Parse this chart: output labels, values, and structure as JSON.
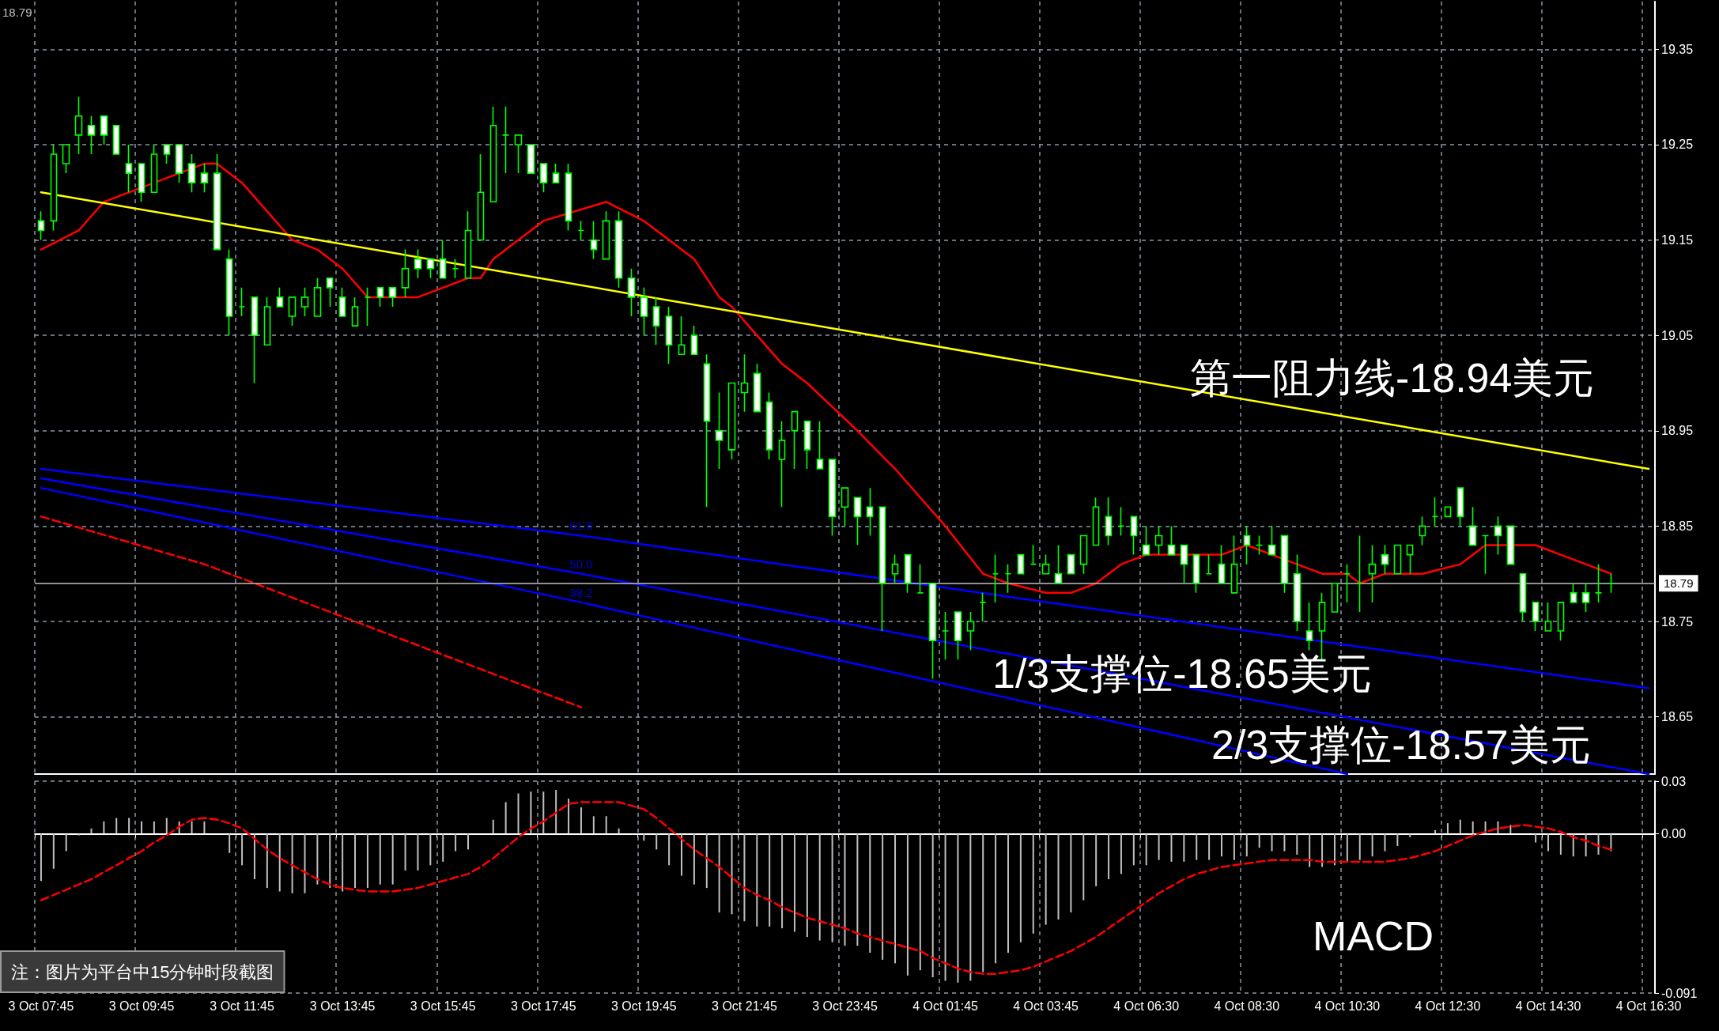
{
  "chart_data": [
    {
      "type": "candlestick",
      "categories": [
        null,
        null,
        null,
        null,
        null,
        null,
        null,
        null,
        null,
        null,
        null,
        null,
        null,
        null,
        null,
        null,
        null,
        null,
        null,
        null,
        null,
        null,
        null,
        null,
        null,
        null,
        null,
        null,
        null,
        null,
        null,
        null,
        null,
        null,
        null,
        null,
        null,
        null,
        null,
        null,
        null,
        null,
        null,
        null,
        null,
        null,
        null,
        null,
        null,
        null,
        null,
        null,
        null,
        null,
        null,
        null,
        null,
        null,
        null,
        null,
        null,
        null,
        null,
        null,
        null,
        null,
        null,
        null,
        null,
        null,
        null,
        null,
        null,
        null,
        null,
        null,
        null,
        null,
        null,
        null,
        null,
        null,
        null,
        null,
        null,
        null,
        null,
        null,
        null,
        null,
        null,
        null,
        null,
        null,
        null,
        null,
        null,
        null,
        null,
        null,
        null,
        null,
        null,
        null,
        null,
        null,
        null,
        null,
        null,
        null,
        null,
        null,
        null,
        null,
        null,
        null,
        null,
        null,
        null,
        null,
        null,
        null,
        null,
        null,
        null,
        null,
        null,
        null,
        null
      ],
      "series": [
        {
          "color": "#00ff00",
          "ohlc": [
            [
              19.17,
              19.18,
              19.15,
              19.16
            ],
            [
              19.17,
              19.25,
              19.16,
              19.24
            ],
            [
              19.23,
              19.25,
              19.22,
              19.25
            ],
            [
              19.26,
              19.3,
              19.24,
              19.28
            ],
            [
              19.27,
              19.28,
              19.24,
              19.26
            ],
            [
              19.28,
              19.28,
              19.25,
              19.26
            ],
            [
              19.27,
              19.27,
              19.24,
              19.24
            ],
            [
              19.23,
              19.25,
              19.2,
              19.22
            ],
            [
              19.23,
              19.23,
              19.19,
              19.2
            ],
            [
              19.2,
              19.25,
              19.2,
              19.24
            ],
            [
              19.25,
              19.25,
              19.23,
              19.24
            ],
            [
              19.25,
              19.25,
              19.21,
              19.22
            ],
            [
              19.23,
              19.24,
              19.2,
              19.21
            ],
            [
              19.22,
              19.23,
              19.2,
              19.21
            ],
            [
              19.22,
              19.24,
              19.14,
              19.14
            ],
            [
              19.13,
              19.14,
              19.05,
              19.07
            ],
            [
              19.08,
              19.1,
              19.07,
              19.08
            ],
            [
              19.09,
              19.09,
              19.0,
              19.05
            ],
            [
              19.04,
              19.09,
              19.04,
              19.08
            ],
            [
              19.09,
              19.1,
              19.08,
              19.08
            ],
            [
              19.07,
              19.09,
              19.06,
              19.09
            ],
            [
              19.08,
              19.1,
              19.07,
              19.09
            ],
            [
              19.07,
              19.11,
              19.07,
              19.1
            ],
            [
              19.11,
              19.11,
              19.08,
              19.1
            ],
            [
              19.09,
              19.1,
              19.07,
              19.07
            ],
            [
              19.06,
              19.09,
              19.06,
              19.08
            ],
            [
              19.09,
              19.1,
              19.06,
              19.09
            ],
            [
              19.1,
              19.1,
              19.08,
              19.09
            ],
            [
              19.1,
              19.1,
              19.08,
              19.09
            ],
            [
              19.1,
              19.14,
              19.09,
              19.12
            ],
            [
              19.13,
              19.14,
              19.11,
              19.12
            ],
            [
              19.13,
              19.13,
              19.11,
              19.12
            ],
            [
              19.13,
              19.15,
              19.11,
              19.11
            ],
            [
              19.12,
              19.13,
              19.11,
              19.12
            ],
            [
              19.11,
              19.18,
              19.11,
              19.16
            ],
            [
              19.15,
              19.24,
              19.15,
              19.2
            ],
            [
              19.19,
              19.29,
              19.19,
              19.27
            ],
            [
              19.26,
              19.29,
              19.22,
              19.26
            ],
            [
              19.25,
              19.26,
              19.22,
              19.26
            ],
            [
              19.25,
              19.25,
              19.22,
              19.22
            ],
            [
              19.23,
              19.23,
              19.2,
              19.21
            ],
            [
              19.22,
              19.23,
              19.21,
              19.21
            ],
            [
              19.22,
              19.23,
              19.16,
              19.17
            ],
            [
              19.16,
              19.17,
              19.15,
              19.16
            ],
            [
              19.15,
              19.17,
              19.13,
              19.14
            ],
            [
              19.13,
              19.18,
              19.13,
              19.17
            ],
            [
              19.17,
              19.18,
              19.1,
              19.11
            ],
            [
              19.11,
              19.12,
              19.07,
              19.09
            ],
            [
              19.09,
              19.1,
              19.05,
              19.07
            ],
            [
              19.08,
              19.09,
              19.04,
              19.06
            ],
            [
              19.07,
              19.08,
              19.02,
              19.04
            ],
            [
              19.03,
              19.07,
              19.03,
              19.04
            ],
            [
              19.05,
              19.06,
              19.03,
              19.03
            ],
            [
              19.02,
              19.03,
              18.87,
              18.96
            ],
            [
              18.95,
              18.99,
              18.91,
              18.94
            ],
            [
              18.93,
              19.0,
              18.92,
              19.0
            ],
            [
              18.99,
              19.03,
              18.97,
              19.0
            ],
            [
              19.01,
              19.02,
              18.97,
              18.97
            ],
            [
              18.98,
              18.99,
              18.92,
              18.93
            ],
            [
              18.92,
              18.96,
              18.87,
              18.94
            ],
            [
              18.95,
              18.97,
              18.91,
              18.97
            ],
            [
              18.96,
              18.96,
              18.91,
              18.93
            ],
            [
              18.92,
              18.96,
              18.91,
              18.91
            ],
            [
              18.92,
              18.92,
              18.84,
              18.86
            ],
            [
              18.87,
              18.89,
              18.85,
              18.89
            ],
            [
              18.88,
              18.88,
              18.83,
              18.86
            ],
            [
              18.87,
              18.89,
              18.84,
              18.86
            ],
            [
              18.87,
              18.87,
              18.74,
              18.79
            ],
            [
              18.8,
              18.82,
              18.79,
              18.81
            ],
            [
              18.82,
              18.82,
              18.78,
              18.79
            ],
            [
              18.78,
              18.81,
              18.78,
              18.78
            ],
            [
              18.79,
              18.79,
              18.69,
              18.73
            ],
            [
              18.74,
              18.76,
              18.71,
              18.74
            ],
            [
              18.76,
              18.76,
              18.71,
              18.73
            ],
            [
              18.74,
              18.76,
              18.72,
              18.75
            ],
            [
              18.77,
              18.78,
              18.75,
              18.77
            ],
            [
              18.8,
              18.82,
              18.77,
              18.8
            ],
            [
              18.8,
              18.81,
              18.78,
              18.8
            ],
            [
              18.82,
              18.82,
              18.8,
              18.8
            ],
            [
              18.81,
              18.83,
              18.81,
              18.81
            ],
            [
              18.8,
              18.82,
              18.8,
              18.81
            ],
            [
              18.8,
              18.83,
              18.79,
              18.79
            ],
            [
              18.82,
              18.82,
              18.8,
              18.8
            ],
            [
              18.81,
              18.84,
              18.8,
              18.84
            ],
            [
              18.83,
              18.88,
              18.83,
              18.87
            ],
            [
              18.86,
              18.88,
              18.83,
              18.84
            ],
            [
              18.85,
              18.87,
              18.84,
              18.85
            ],
            [
              18.86,
              18.86,
              18.82,
              18.84
            ],
            [
              18.83,
              18.85,
              18.82,
              18.82
            ],
            [
              18.83,
              18.85,
              18.82,
              18.84
            ],
            [
              18.83,
              18.85,
              18.82,
              18.82
            ],
            [
              18.83,
              18.83,
              18.79,
              18.81
            ],
            [
              18.82,
              18.82,
              18.78,
              18.79
            ],
            [
              18.8,
              18.82,
              18.8,
              18.8
            ],
            [
              18.81,
              18.83,
              18.79,
              18.79
            ],
            [
              18.78,
              18.84,
              18.78,
              18.81
            ],
            [
              18.84,
              18.85,
              18.81,
              18.83
            ],
            [
              18.83,
              18.84,
              18.82,
              18.83
            ],
            [
              18.83,
              18.85,
              18.82,
              18.82
            ],
            [
              18.84,
              18.84,
              18.78,
              18.79
            ],
            [
              18.8,
              18.82,
              18.74,
              18.75
            ],
            [
              18.74,
              18.77,
              18.72,
              18.73
            ],
            [
              18.74,
              18.78,
              18.71,
              18.77
            ],
            [
              18.76,
              18.79,
              18.76,
              18.79
            ],
            [
              18.8,
              18.81,
              18.77,
              18.8
            ],
            [
              18.79,
              18.84,
              18.76,
              18.79
            ],
            [
              18.8,
              18.83,
              18.77,
              18.81
            ],
            [
              18.82,
              18.83,
              18.8,
              18.81
            ],
            [
              18.8,
              18.83,
              18.8,
              18.83
            ],
            [
              18.82,
              18.83,
              18.8,
              18.83
            ],
            [
              18.84,
              18.86,
              18.83,
              18.85
            ],
            [
              18.86,
              18.88,
              18.85,
              18.86
            ],
            [
              18.86,
              18.87,
              18.86,
              18.87
            ],
            [
              18.89,
              18.89,
              18.85,
              18.86
            ],
            [
              18.85,
              18.87,
              18.83,
              18.83
            ],
            [
              18.84,
              18.84,
              18.8,
              18.84
            ],
            [
              18.85,
              18.86,
              18.82,
              18.84
            ],
            [
              18.85,
              18.85,
              18.81,
              18.81
            ],
            [
              18.8,
              18.8,
              18.75,
              18.76
            ],
            [
              18.77,
              18.77,
              18.74,
              18.75
            ],
            [
              18.74,
              18.77,
              18.74,
              18.75
            ],
            [
              18.74,
              18.77,
              18.73,
              18.77
            ],
            [
              18.78,
              18.79,
              18.77,
              18.77
            ],
            [
              18.78,
              18.79,
              18.76,
              18.77
            ],
            [
              18.78,
              18.81,
              18.77,
              18.78
            ],
            [
              18.79,
              18.8,
              18.78,
              18.79
            ],
            null,
            null,
            null
          ]
        },
        {
          "type": "line",
          "color": "#ff0000",
          "values": [
            19.14,
            null,
            null,
            19.16,
            null,
            19.19,
            null,
            null,
            null,
            null,
            null,
            null,
            null,
            19.23,
            19.23,
            null,
            19.21,
            null,
            19.18,
            null,
            19.15,
            null,
            19.14,
            null,
            19.12,
            null,
            19.09,
            null,
            null,
            null,
            19.09,
            null,
            19.1,
            null,
            19.11,
            19.11,
            19.13,
            null,
            19.15,
            null,
            19.17,
            null,
            null,
            null,
            null,
            19.19,
            null,
            null,
            19.17,
            null,
            19.15,
            null,
            19.13,
            null,
            19.09,
            19.08,
            null,
            19.05,
            null,
            19.02,
            null,
            19.0,
            null,
            null,
            null,
            18.95,
            null,
            null,
            18.91,
            null,
            null,
            null,
            18.85,
            null,
            null,
            18.8,
            null,
            18.79,
            null,
            null,
            18.78,
            null,
            18.78,
            null,
            18.79,
            null,
            18.81,
            null,
            18.82,
            null,
            null,
            null,
            18.82,
            null,
            18.82,
            null,
            18.83,
            null,
            18.82,
            null,
            18.81,
            null,
            18.8,
            null,
            18.8,
            18.79,
            null,
            18.8,
            null,
            null,
            18.8,
            null,
            null,
            18.81,
            null,
            18.83,
            null,
            null,
            null,
            18.83,
            null,
            18.82,
            null,
            18.81,
            null,
            18.8,
            null,
            null,
            null
          ]
        },
        {
          "type": "line",
          "color": "#ffff00",
          "values": [
            19.2,
            null,
            null,
            null,
            null,
            null,
            null,
            null,
            null,
            null,
            null,
            null,
            null,
            null,
            null,
            null,
            null,
            null,
            null,
            null,
            null,
            null,
            null,
            null,
            null,
            null,
            null,
            null,
            null,
            null,
            null,
            null,
            null,
            null,
            null,
            null,
            null,
            null,
            null,
            null,
            null,
            null,
            null,
            null,
            null,
            null,
            null,
            null,
            null,
            null,
            null,
            null,
            null,
            null,
            null,
            null,
            null,
            null,
            null,
            null,
            null,
            null,
            null,
            null,
            null,
            null,
            null,
            null,
            null,
            null,
            null,
            null,
            null,
            null,
            null,
            null,
            null,
            null,
            null,
            null,
            null,
            null,
            null,
            null,
            null,
            null,
            null,
            null,
            null,
            null,
            null,
            null,
            null,
            null,
            null,
            null,
            null,
            null,
            null,
            null,
            null,
            null,
            null,
            null,
            null,
            null,
            null,
            null,
            null,
            null,
            null,
            null,
            null,
            null,
            null,
            null,
            null,
            null,
            null,
            null,
            null,
            null,
            null,
            null,
            null,
            null,
            null,
            null,
            18.91
          ]
        },
        {
          "type": "line",
          "name": "61.8",
          "color": "#0000ff",
          "values": [
            18.91,
            null,
            null,
            null,
            null,
            null,
            null,
            null,
            null,
            null,
            null,
            null,
            null,
            null,
            null,
            null,
            null,
            null,
            null,
            null,
            null,
            null,
            null,
            null,
            null,
            null,
            null,
            null,
            null,
            null,
            null,
            null,
            null,
            null,
            null,
            null,
            null,
            null,
            null,
            null,
            null,
            null,
            null,
            18.84,
            null,
            null,
            null,
            null,
            null,
            null,
            null,
            null,
            null,
            null,
            null,
            null,
            null,
            null,
            null,
            null,
            null,
            null,
            null,
            null,
            null,
            null,
            null,
            null,
            null,
            null,
            null,
            null,
            null,
            null,
            null,
            null,
            null,
            null,
            null,
            null,
            null,
            null,
            null,
            null,
            null,
            null,
            null,
            null,
            null,
            null,
            null,
            null,
            null,
            null,
            null,
            null,
            null,
            null,
            null,
            null,
            null,
            null,
            null,
            null,
            null,
            null,
            null,
            null,
            null,
            null,
            null,
            null,
            null,
            null,
            null,
            null,
            null,
            null,
            null,
            null,
            null,
            null,
            null,
            null,
            null,
            null,
            null,
            null,
            18.68
          ]
        },
        {
          "type": "line",
          "name": "50.0",
          "color": "#0000ff",
          "values": [
            18.9,
            null,
            null,
            null,
            null,
            null,
            null,
            null,
            null,
            null,
            null,
            null,
            null,
            null,
            null,
            null,
            null,
            null,
            null,
            null,
            null,
            null,
            null,
            null,
            null,
            null,
            null,
            null,
            null,
            null,
            null,
            null,
            null,
            null,
            null,
            null,
            null,
            null,
            null,
            null,
            null,
            null,
            null,
            18.8,
            null,
            null,
            null,
            null,
            null,
            null,
            null,
            null,
            null,
            null,
            null,
            null,
            null,
            null,
            null,
            null,
            null,
            null,
            null,
            null,
            null,
            null,
            null,
            null,
            null,
            null,
            null,
            null,
            null,
            null,
            null,
            null,
            null,
            null,
            null,
            null,
            null,
            null,
            null,
            null,
            null,
            null,
            null,
            null,
            null,
            null,
            null,
            null,
            null,
            null,
            null,
            null,
            null,
            null,
            null,
            null,
            null,
            null,
            null,
            null,
            null,
            null,
            null,
            null,
            null,
            null,
            null,
            null,
            null,
            null,
            null,
            null,
            null,
            null,
            null,
            null,
            null,
            null,
            null,
            null,
            null,
            null,
            null,
            null,
            18.59
          ]
        },
        {
          "type": "line",
          "name": "38.2",
          "color": "#0000ff",
          "values": [
            18.89,
            null,
            null,
            null,
            null,
            null,
            null,
            null,
            null,
            null,
            null,
            null,
            null,
            null,
            null,
            null,
            null,
            null,
            null,
            null,
            null,
            null,
            null,
            null,
            null,
            null,
            null,
            null,
            null,
            null,
            null,
            null,
            null,
            null,
            null,
            null,
            null,
            null,
            null,
            null,
            null,
            null,
            null,
            18.77,
            null,
            null,
            null,
            null,
            null,
            null,
            null,
            null,
            null,
            null,
            null,
            null,
            null,
            null,
            null,
            null,
            null,
            null,
            null,
            null,
            null,
            null,
            null,
            null,
            null,
            null,
            null,
            null,
            null,
            null,
            null,
            null,
            null,
            null,
            null,
            null,
            null,
            null,
            null,
            null,
            null,
            null,
            null,
            null,
            null,
            null,
            null,
            null,
            null,
            null,
            null,
            null,
            null,
            null,
            null,
            null,
            null,
            null,
            null,
            null,
            18.59,
            null,
            null,
            null,
            null,
            null,
            null,
            null,
            null,
            null,
            null,
            null,
            null,
            null,
            null,
            null,
            null,
            null,
            null,
            null,
            null,
            null,
            null,
            null,
            null
          ]
        },
        {
          "type": "line",
          "color": "#ff0000",
          "line_style": "dashed",
          "values": [
            18.86,
            null,
            null,
            null,
            null,
            null,
            null,
            null,
            null,
            null,
            null,
            null,
            null,
            18.81,
            null,
            null,
            null,
            null,
            null,
            null,
            null,
            null,
            null,
            null,
            null,
            null,
            null,
            null,
            null,
            null,
            null,
            null,
            null,
            null,
            null,
            null,
            null,
            null,
            null,
            null,
            null,
            null,
            null,
            18.66,
            null,
            null,
            null,
            null,
            null,
            null,
            null,
            null,
            null,
            null,
            null,
            null,
            null,
            null,
            null,
            null,
            null,
            null,
            null,
            null,
            null,
            null,
            null,
            null,
            null,
            null,
            null,
            null,
            null,
            null,
            null,
            null,
            null,
            null,
            null,
            null,
            null,
            null,
            null,
            null,
            null,
            null,
            null,
            null,
            null,
            null,
            null,
            null,
            null,
            null,
            null,
            null,
            null,
            null,
            null,
            null,
            null,
            null,
            null,
            null,
            null,
            null,
            null,
            null,
            null,
            null,
            null,
            null,
            null,
            null,
            null,
            null,
            null,
            null,
            null,
            null,
            null,
            null,
            null,
            null,
            null,
            null,
            null,
            null,
            null
          ]
        }
      ],
      "ylim": [
        18.59,
        19.4
      ],
      "yticks": [
        18.65,
        18.75,
        18.85,
        18.95,
        19.05,
        19.15,
        19.25,
        19.35
      ],
      "ref_lines": [
        {
          "axis": "y",
          "value": 18.79,
          "label": "18.79",
          "color": "#c0c0c0"
        }
      ],
      "annotations": [
        "第一阻力线-18.94美元",
        "1/3支撑位-18.65美元",
        "2/3支撑位-18.57美元",
        "18.79"
      ],
      "grid": true,
      "tick_labels": "y"
    },
    {
      "type": "bar",
      "categories": [
        "3 Oct 07:45",
        null,
        null,
        null,
        null,
        null,
        null,
        null,
        "3 Oct 09:45",
        null,
        null,
        null,
        null,
        null,
        null,
        null,
        "3 Oct 11:45",
        null,
        null,
        null,
        null,
        null,
        null,
        null,
        "3 Oct 13:45",
        null,
        null,
        null,
        null,
        null,
        null,
        null,
        "3 Oct 15:45",
        null,
        null,
        null,
        null,
        null,
        null,
        null,
        "3 Oct 17:45",
        null,
        null,
        null,
        null,
        null,
        null,
        null,
        "3 Oct 19:45",
        null,
        null,
        null,
        null,
        null,
        null,
        null,
        "3 Oct 21:45",
        null,
        null,
        null,
        null,
        null,
        null,
        null,
        "3 Oct 23:45",
        null,
        null,
        null,
        null,
        null,
        null,
        null,
        "4 Oct 01:45",
        null,
        null,
        null,
        null,
        null,
        null,
        null,
        "4 Oct 03:45",
        null,
        null,
        null,
        null,
        null,
        null,
        null,
        "4 Oct 06:30",
        null,
        null,
        null,
        null,
        null,
        null,
        null,
        "4 Oct 08:30",
        null,
        null,
        null,
        null,
        null,
        null,
        null,
        "4 Oct 10:30",
        null,
        null,
        null,
        null,
        null,
        null,
        null,
        "4 Oct 12:30",
        null,
        null,
        null,
        null,
        null,
        null,
        null,
        "4 Oct 14:30",
        null,
        null,
        null,
        null,
        null,
        null,
        null,
        "4 Oct 16:30"
      ],
      "series": [
        {
          "color": "#c0c0c0",
          "values": [
            -0.027,
            -0.02,
            -0.01,
            -0.001,
            0.003,
            0.007,
            0.009,
            0.009,
            0.007,
            0.007,
            0.009,
            0.007,
            0.007,
            0.007,
            0,
            -0.011,
            -0.018,
            -0.026,
            -0.031,
            -0.033,
            -0.034,
            -0.034,
            -0.029,
            -0.031,
            -0.033,
            -0.031,
            -0.031,
            -0.029,
            -0.029,
            -0.021,
            -0.021,
            -0.018,
            -0.016,
            -0.01,
            -0.009,
            0,
            0.008,
            0.018,
            0.023,
            0.024,
            0.024,
            0.025,
            0.02,
            0.015,
            0.01,
            0.01,
            0.003,
            0,
            -0.004,
            -0.009,
            -0.018,
            -0.024,
            -0.029,
            -0.031,
            -0.045,
            -0.046,
            -0.05,
            -0.053,
            -0.053,
            -0.054,
            -0.056,
            -0.059,
            -0.061,
            -0.062,
            -0.064,
            -0.064,
            -0.068,
            -0.072,
            -0.074,
            -0.081,
            -0.078,
            -0.082,
            -0.084,
            -0.085,
            -0.084,
            -0.079,
            -0.074,
            -0.068,
            -0.062,
            -0.057,
            -0.052,
            -0.049,
            -0.045,
            -0.038,
            -0.03,
            -0.026,
            -0.023,
            -0.018,
            -0.018,
            -0.015,
            -0.016,
            -0.016,
            -0.015,
            -0.015,
            -0.013,
            -0.015,
            -0.013,
            -0.008,
            -0.01,
            -0.01,
            -0.012,
            -0.019,
            -0.019,
            -0.018,
            -0.016,
            -0.015,
            -0.013,
            -0.01,
            -0.007,
            -0.002,
            0,
            0.002,
            0.006,
            0.008,
            0.007,
            0.007,
            0.007,
            0.005,
            0,
            -0.005,
            -0.01,
            -0.012,
            -0.013,
            -0.013,
            -0.012,
            -0.01,
            null,
            null,
            null
          ]
        },
        {
          "type": "line",
          "color": "#ff0000",
          "line_style": "dashed",
          "values": [
            -0.038,
            -0.035,
            -0.032,
            -0.029,
            -0.026,
            -0.022,
            -0.018,
            -0.014,
            -0.01,
            -0.005,
            -0.001,
            0.004,
            0.008,
            0.009,
            0.008,
            0.006,
            0.003,
            -0.003,
            -0.009,
            -0.014,
            -0.018,
            -0.022,
            -0.026,
            -0.029,
            -0.031,
            -0.032,
            -0.033,
            -0.033,
            -0.033,
            -0.032,
            -0.031,
            -0.029,
            -0.027,
            -0.025,
            -0.023,
            -0.019,
            -0.014,
            -0.008,
            -0.002,
            0.003,
            0.007,
            0.012,
            0.017,
            0.018,
            0.018,
            0.018,
            0.018,
            0.016,
            0.014,
            0.009,
            0.003,
            -0.003,
            -0.009,
            -0.014,
            -0.019,
            -0.025,
            -0.031,
            -0.035,
            -0.038,
            -0.042,
            -0.045,
            -0.048,
            -0.05,
            -0.052,
            -0.054,
            -0.057,
            -0.059,
            -0.061,
            -0.063,
            -0.065,
            -0.067,
            -0.071,
            -0.074,
            -0.077,
            -0.079,
            -0.08,
            -0.08,
            -0.079,
            -0.078,
            -0.076,
            -0.073,
            -0.07,
            -0.067,
            -0.063,
            -0.059,
            -0.054,
            -0.049,
            -0.044,
            -0.039,
            -0.034,
            -0.03,
            -0.026,
            -0.023,
            -0.021,
            -0.019,
            -0.018,
            -0.017,
            -0.016,
            -0.015,
            -0.015,
            -0.015,
            -0.015,
            -0.016,
            -0.016,
            -0.016,
            -0.016,
            -0.016,
            -0.016,
            -0.015,
            -0.014,
            -0.012,
            -0.01,
            -0.007,
            -0.004,
            -0.001,
            0.001,
            0.003,
            0.004,
            0.005,
            0.004,
            0.003,
            0.001,
            -0.002,
            -0.004,
            -0.007,
            -0.009,
            null,
            null,
            null
          ]
        }
      ],
      "ylim": [
        -0.091,
        0.03
      ],
      "yticks": [
        0.03,
        {
          "value": 0,
          "label": "0.00"
        },
        -0.091
      ],
      "annotations": [
        "MACD",
        "注：图片为平台中15分钟时段截图"
      ],
      "grid": true
    }
  ]
}
